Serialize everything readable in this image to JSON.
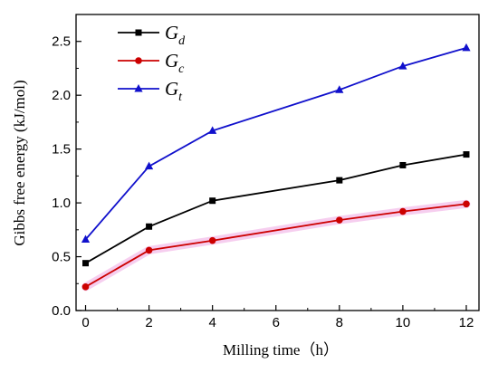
{
  "chart_data": {
    "type": "line",
    "xlabel": "Milling time（h）",
    "ylabel": "Gibbs free energy (kJ/mol)",
    "xlim": [
      -0.3,
      12.4
    ],
    "ylim": [
      0.0,
      2.75
    ],
    "x_ticks": [
      0,
      2,
      4,
      6,
      8,
      10,
      12
    ],
    "y_ticks": [
      0.0,
      0.5,
      1.0,
      1.5,
      2.0,
      2.5
    ],
    "x_tick_labels": [
      "0",
      "2",
      "4",
      "6",
      "8",
      "10",
      "12"
    ],
    "y_tick_labels": [
      "0.0",
      "0.5",
      "1.0",
      "1.5",
      "2.0",
      "2.5"
    ],
    "grid": false,
    "legend_position": "top-left",
    "x": [
      0,
      2,
      4,
      8,
      10,
      12
    ],
    "series": [
      {
        "name": "G_d",
        "label_main": "G",
        "label_sub": "d",
        "color": "#000000",
        "marker": "square",
        "values": [
          0.44,
          0.78,
          1.02,
          1.21,
          1.35,
          1.45
        ]
      },
      {
        "name": "G_c",
        "label_main": "G",
        "label_sub": "c",
        "color": "#cc0000",
        "marker": "circle",
        "values": [
          0.22,
          0.56,
          0.65,
          0.84,
          0.92,
          0.99
        ]
      },
      {
        "name": "G_t",
        "label_main": "G",
        "label_sub": "t",
        "color": "#1010cc",
        "marker": "triangle",
        "values": [
          0.66,
          1.34,
          1.67,
          2.05,
          2.27,
          2.44
        ]
      }
    ]
  }
}
